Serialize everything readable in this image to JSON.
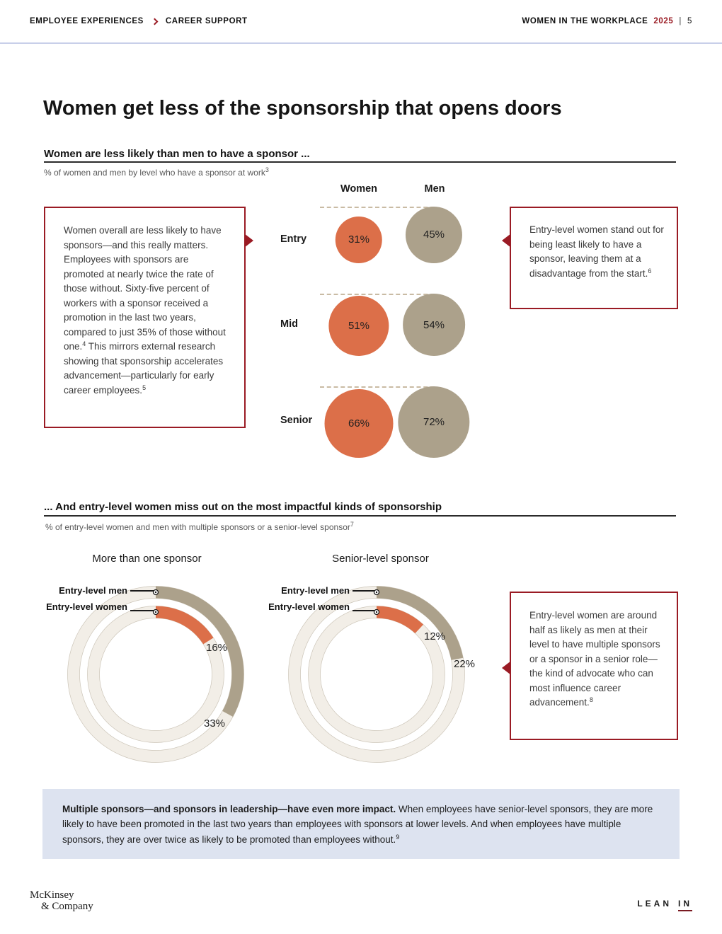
{
  "header": {
    "left": {
      "section": "EMPLOYEE EXPERIENCES",
      "chevron_icon": "chevron-right",
      "subsection": "CAREER SUPPORT"
    },
    "right": {
      "title": "WOMEN IN THE WORKPLACE",
      "year": "2025",
      "separator": "|",
      "page": "5"
    }
  },
  "title": "Women get less of the sponsorship that opens doors",
  "section1": {
    "heading": "Women are less likely than men to have a sponsor ...",
    "subtitle": "% of women and men by level who have a sponsor at work",
    "subtitle_sup": "3"
  },
  "section2": {
    "heading": "... And entry-level women miss out on the most impactful kinds of sponsorship",
    "subtitle": "% of entry-level women and men with multiple sponsors or a senior-level sponsor",
    "subtitle_sup": "7"
  },
  "callout_overall": {
    "text1": "Women overall are less likely to have sponsors—and this really matters. Employees with sponsors are promoted at nearly twice the rate of those without. Sixty-five percent of workers with a sponsor received a promotion in the last two years, compared to just 35% of those without one.",
    "sup1": "4",
    "text2": " This mirrors external research showing that sponsorship accelerates advancement—particularly for early career employees.",
    "sup2": "5"
  },
  "callout_entry": {
    "text": "Entry-level women stand out for being least likely to have a sponsor, leaving them at a disadvantage from the start.",
    "sup": "6"
  },
  "callout_half": {
    "text": "Entry-level women are around half as likely as men at their level to have multiple sponsors or a sponsor in a senior role—the kind of advocate who can most influence career advancement.",
    "sup": "8"
  },
  "impact_box": {
    "lead": "Multiple sponsors—and sponsors in leadership—have even more impact.",
    "rest": " When employees have senior-level sponsors, they are more likely to have been promoted in the last two years than employees with sponsors at lower levels. And when employees have multiple sponsors, they are over twice as likely to be promoted than employees without.",
    "sup": "9"
  },
  "footer": {
    "mckinsey_line1": "McKinsey",
    "mckinsey_line2": "& Company",
    "leanin_word1": "LEAN",
    "leanin_word2": "IN"
  },
  "colors": {
    "accent_red": "#9A1B24",
    "women_orange": "#DC6F49",
    "men_tan": "#ACA18B",
    "ring_track": "#F2EEE7",
    "impact_bg": "#DDE3F0"
  },
  "chart_data": [
    {
      "type": "bubble",
      "title": "Women are less likely than men to have a sponsor ...",
      "unit": "% who have a sponsor at work",
      "columns": [
        "Women",
        "Men"
      ],
      "rows": [
        {
          "level": "Entry",
          "women": {
            "value": 31,
            "label": "31%"
          },
          "men": {
            "value": 45,
            "label": "45%"
          }
        },
        {
          "level": "Mid",
          "women": {
            "value": 51,
            "label": "51%"
          },
          "men": {
            "value": 54,
            "label": "54%"
          }
        },
        {
          "level": "Senior",
          "women": {
            "value": 66,
            "label": "66%"
          },
          "men": {
            "value": 72,
            "label": "72%"
          }
        }
      ],
      "layout": "bubble area proportional to value; dashed reference line at top of men's bubble in each row"
    },
    {
      "type": "donut",
      "title": "... And entry-level women miss out on the most impactful kinds of sponsorship",
      "unit": "% of entry-level women and men",
      "charts": [
        {
          "title": "More than one sponsor",
          "series": [
            {
              "name": "Entry-level men",
              "ring": "outer",
              "value": 33,
              "label": "33%"
            },
            {
              "name": "Entry-level women",
              "ring": "inner",
              "value": 16,
              "label": "16%"
            }
          ]
        },
        {
          "title": "Senior-level sponsor",
          "series": [
            {
              "name": "Entry-level men",
              "ring": "outer",
              "value": 22,
              "label": "22%"
            },
            {
              "name": "Entry-level women",
              "ring": "inner",
              "value": 12,
              "label": "12%"
            }
          ]
        }
      ],
      "layout": "arcs start at 12 o'clock and run clockwise; remainder of ring is light beige track"
    }
  ]
}
